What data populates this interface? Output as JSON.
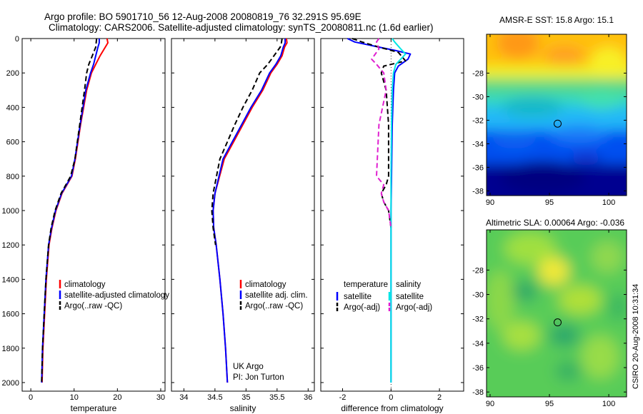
{
  "header": {
    "line1": "Argo profile: BO 5901710_56 12-Aug-2008 20080819_76 32.291S 95.69E",
    "line2": "Climatology: CARS2006. Satellite-adjusted climatology: synTS_20080811.nc (1.6d earlier)"
  },
  "side_label": "CSIRO 20-Aug-2008 10:31:34",
  "colors": {
    "climatology": "#ff0000",
    "satellite": "#0000ff",
    "argo": "#000000",
    "satellite_salinity": "#00e5e5",
    "argo_salinity_adj": "#e020d0"
  },
  "chart_data": [
    {
      "type": "line",
      "xlabel": "temperature",
      "ylabel": "",
      "xlim": [
        -2,
        31
      ],
      "ylim": [
        2050,
        0
      ],
      "xticks": [
        0,
        10,
        20,
        30
      ],
      "yticks": [
        0,
        200,
        400,
        600,
        800,
        1000,
        1200,
        1400,
        1600,
        1800,
        2000
      ],
      "legend": [
        "climatology",
        "satellite-adjusted climatology",
        "Argo(..raw -QC)"
      ],
      "legend_placement": "lower-right",
      "series": [
        {
          "name": "climatology",
          "x": [
            17.6,
            17.8,
            17.2,
            16.0,
            15.0,
            14.0,
            12.9,
            11.5,
            10.3,
            9.5,
            7.2,
            5.8,
            4.9,
            4.2,
            3.6,
            3.2,
            2.8,
            2.6
          ],
          "y": [
            0,
            25,
            50,
            100,
            150,
            200,
            300,
            500,
            700,
            800,
            900,
            1000,
            1100,
            1200,
            1400,
            1600,
            1800,
            2000
          ]
        },
        {
          "name": "satellite-adjusted climatology",
          "x": [
            15.8,
            15.8,
            15.5,
            15.0,
            14.5,
            13.8,
            12.7,
            11.4,
            10.2,
            9.4,
            7.1,
            5.7,
            4.8,
            4.1,
            3.5,
            3.1,
            2.7,
            2.5
          ],
          "y": [
            0,
            25,
            50,
            100,
            150,
            200,
            300,
            500,
            700,
            800,
            900,
            1000,
            1100,
            1200,
            1400,
            1600,
            1800,
            2000
          ]
        },
        {
          "name": "Argo(..raw -QC)",
          "x": [
            15.2,
            15.1,
            15.0,
            14.2,
            13.4,
            12.9,
            12.4,
            11.3,
            10.2,
            9.2,
            7.0,
            5.6,
            4.7,
            4.1,
            3.5,
            3.1,
            2.7,
            2.5
          ],
          "y": [
            0,
            25,
            50,
            100,
            150,
            200,
            300,
            500,
            700,
            800,
            900,
            1000,
            1100,
            1200,
            1400,
            1600,
            1800,
            2000
          ]
        }
      ]
    },
    {
      "type": "line",
      "xlabel": "salinity",
      "ylabel": "",
      "xlim": [
        33.8,
        36.1
      ],
      "ylim": [
        2050,
        0
      ],
      "xticks": [
        34,
        34.5,
        35,
        35.5,
        36
      ],
      "legend": [
        "climatology",
        "satellite adj. clim.",
        "Argo(..raw -QC)"
      ],
      "legend_placement": "lower-right",
      "annotation": [
        "UK Argo",
        "PI: Jon Turton"
      ],
      "series": [
        {
          "name": "climatology",
          "x": [
            35.65,
            35.66,
            35.62,
            35.58,
            35.5,
            35.4,
            35.27,
            35.1,
            34.95,
            34.8,
            34.65,
            34.5,
            34.47,
            34.48,
            34.52,
            34.58,
            34.63,
            34.67,
            34.7
          ],
          "y": [
            0,
            25,
            50,
            100,
            150,
            200,
            300,
            400,
            500,
            600,
            700,
            900,
            1000,
            1100,
            1200,
            1400,
            1600,
            1800,
            2000
          ]
        },
        {
          "name": "satellite adj. clim.",
          "x": [
            35.63,
            35.63,
            35.6,
            35.56,
            35.48,
            35.38,
            35.25,
            35.08,
            34.93,
            34.78,
            34.63,
            34.5,
            34.47,
            34.48,
            34.52,
            34.58,
            34.63,
            34.67,
            34.7
          ],
          "y": [
            0,
            25,
            50,
            100,
            150,
            200,
            300,
            400,
            500,
            600,
            700,
            900,
            1000,
            1100,
            1200,
            1400,
            1600,
            1800,
            2000
          ]
        },
        {
          "name": "Argo(..raw -QC)",
          "x": [
            35.58,
            35.57,
            35.55,
            35.45,
            35.35,
            35.22,
            35.1,
            34.95,
            34.82,
            34.7,
            34.58,
            34.47,
            34.45,
            34.47,
            34.51
          ],
          "y": [
            0,
            25,
            50,
            100,
            150,
            200,
            300,
            400,
            500,
            600,
            700,
            900,
            1000,
            1100,
            1200
          ]
        }
      ]
    },
    {
      "type": "line",
      "xlabel": "difference from climatology",
      "ylabel": "",
      "xlim": [
        -2.9,
        3.0
      ],
      "ylim": [
        2050,
        0
      ],
      "xticks": [
        -2,
        0,
        2
      ],
      "legend_groups": {
        "temperature": [
          "satellite",
          "Argo(-adj)"
        ],
        "salinity": [
          "satellite",
          "Argo(-adj)"
        ]
      },
      "legend_placement": "lower-right",
      "series": [
        {
          "name": "temperature satellite",
          "x": [
            -1.8,
            -1.5,
            -0.5,
            0.2,
            0.8,
            0.7,
            0.3,
            0.15,
            0.1,
            0.05,
            0.02,
            0,
            0,
            0,
            0,
            0
          ],
          "y": [
            0,
            20,
            50,
            70,
            90,
            120,
            160,
            200,
            300,
            500,
            800,
            1000,
            1200,
            1500,
            1800,
            2000
          ]
        },
        {
          "name": "temperature Argo(-adj)",
          "x": [
            -1.6,
            -1.2,
            -0.5,
            0.3,
            0.6,
            -0.3,
            -0.4,
            -0.2,
            -0.1,
            -0.1,
            -0.2,
            -0.4,
            -0.3,
            -0.1,
            0
          ],
          "y": [
            0,
            20,
            50,
            80,
            130,
            160,
            200,
            300,
            500,
            800,
            850,
            900,
            950,
            1000,
            1100
          ]
        },
        {
          "name": "salinity satellite",
          "x": [
            0.05,
            0.15,
            0.4,
            0.6,
            0.4,
            0.2,
            0.1,
            0.05,
            0.02,
            0,
            0,
            0,
            0,
            0
          ],
          "y": [
            0,
            20,
            60,
            90,
            120,
            150,
            200,
            300,
            500,
            800,
            1000,
            1400,
            1700,
            2000
          ]
        },
        {
          "name": "salinity Argo(-adj)",
          "x": [
            -0.5,
            -0.6,
            -0.5,
            -0.8,
            -0.6,
            -0.3,
            -0.2,
            -0.5,
            -0.6,
            -0.3,
            -0.4,
            -0.3,
            -0.1,
            0
          ],
          "y": [
            0,
            20,
            60,
            120,
            150,
            200,
            300,
            500,
            800,
            850,
            900,
            950,
            1000,
            1100
          ]
        }
      ]
    },
    {
      "type": "heatmap",
      "title": "AMSR-E SST: 15.8 Argo: 15.1",
      "xlim": [
        89.7,
        101.5
      ],
      "ylim": [
        -38.4,
        -24.7
      ],
      "xticks": [
        90,
        95,
        100
      ],
      "yticks": [
        -28,
        -30,
        -32,
        -34,
        -36,
        -38
      ],
      "marker": {
        "lon": 95.69,
        "lat": -32.291
      }
    },
    {
      "type": "heatmap",
      "title": "Altimetric SLA: 0.00064 Argo: -0.036",
      "xlim": [
        89.7,
        101.5
      ],
      "ylim": [
        -38.4,
        -24.7
      ],
      "xticks": [
        90,
        95,
        100
      ],
      "yticks": [
        -28,
        -30,
        -32,
        -34,
        -36,
        -38
      ],
      "marker": {
        "lon": 95.69,
        "lat": -32.291
      }
    }
  ]
}
